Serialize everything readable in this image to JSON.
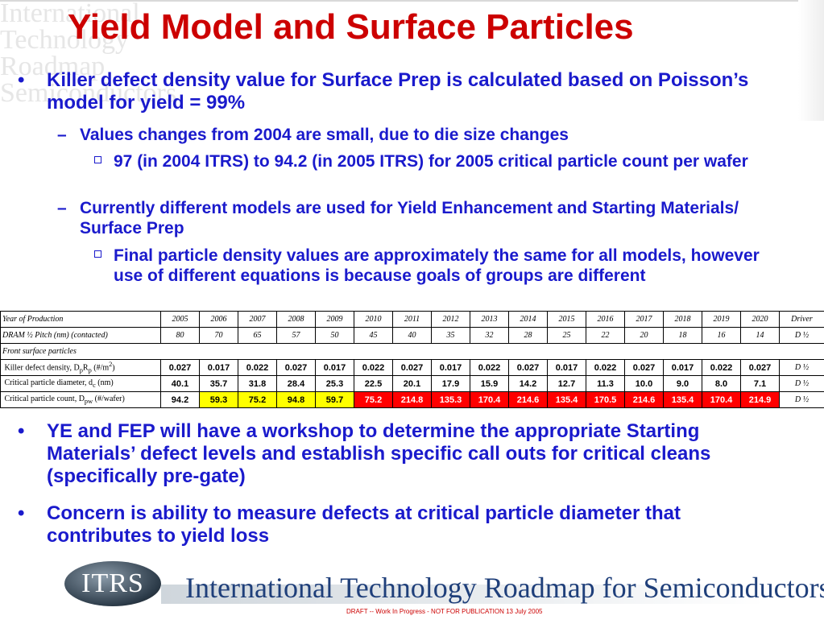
{
  "title": "Yield Model and Surface Particles",
  "watermark_lines": [
    "International",
    "Technology",
    "Roadmap",
    "Semiconductors"
  ],
  "bullets_top": [
    {
      "level": 1,
      "text": "Killer defect density value for Surface Prep is calculated based on Poisson’s model for yield = 99%"
    },
    {
      "level": 2,
      "text": "Values changes from 2004 are small, due to die size changes"
    },
    {
      "level": 3,
      "text": "97 (in 2004 ITRS) to 94.2 (in 2005 ITRS) for 2005 critical particle count per wafer"
    },
    {
      "level": 2,
      "text": "Currently different models are used for Yield Enhancement and Starting Materials/ Surface Prep"
    },
    {
      "level": 3,
      "text": "Final particle density values are approximately the same for all models, however use of different equations is because goals of groups are different"
    }
  ],
  "table": {
    "years_label": "Year of Production",
    "years": [
      "2005",
      "2006",
      "2007",
      "2008",
      "2009",
      "2010",
      "2011",
      "2012",
      "2013",
      "2014",
      "2015",
      "2016",
      "2017",
      "2018",
      "2019",
      "2020"
    ],
    "driver_label": "Driver",
    "pitch_label": "DRAM ½ Pitch (nm) (contacted)",
    "pitch": [
      "80",
      "70",
      "65",
      "57",
      "50",
      "45",
      "40",
      "35",
      "32",
      "28",
      "25",
      "22",
      "20",
      "18",
      "16",
      "14"
    ],
    "pitch_driver": "D ½",
    "section_label": "Front surface particles",
    "killer_label": "Killer defect density, D",
    "killer_label_sub1": "p",
    "killer_label_mid": "R",
    "killer_label_sub2": "p",
    "killer_label_tail": " (#/m",
    "killer_label_sup": "2",
    "killer_label_end": ")",
    "killer": [
      "0.027",
      "0.017",
      "0.022",
      "0.027",
      "0.017",
      "0.022",
      "0.027",
      "0.017",
      "0.022",
      "0.027",
      "0.017",
      "0.022",
      "0.027",
      "0.017",
      "0.022",
      "0.027"
    ],
    "killer_driver": "D ½",
    "diam_label": "Critical particle diameter, d",
    "diam_label_sub": "c",
    "diam_label_tail": " (nm)",
    "diam": [
      "40.1",
      "35.7",
      "31.8",
      "28.4",
      "25.3",
      "22.5",
      "20.1",
      "17.9",
      "15.9",
      "14.2",
      "12.7",
      "11.3",
      "10.0",
      "9.0",
      "8.0",
      "7.1"
    ],
    "diam_driver": "D ½",
    "count_label": "Critical particle count, D",
    "count_label_sub": "pw",
    "count_label_tail": " (#/wafer)",
    "count": [
      "94.2",
      "59.3",
      "75.2",
      "94.8",
      "59.7",
      "75.2",
      "214.8",
      "135.3",
      "170.4",
      "214.6",
      "135.4",
      "170.5",
      "214.6",
      "135.4",
      "170.4",
      "214.9"
    ],
    "count_driver": "D ½",
    "count_cell_colors": [
      "white",
      "yellow",
      "yellow",
      "yellow",
      "yellow",
      "red",
      "red",
      "red",
      "red",
      "red",
      "red",
      "red",
      "red",
      "red",
      "red",
      "red"
    ]
  },
  "bullets_bottom": [
    "YE and FEP will have a workshop to determine the appropriate Starting Materials’ defect levels and establish specific call outs for critical cleans (specifically pre-gate)",
    "Concern is ability to measure defects at critical particle diameter that contributes to yield loss"
  ],
  "footer": {
    "logo_text": "ITRS",
    "roadmap_text": "International Technology Roadmap for Semiconductors",
    "draft_text": "DRAFT -- Work In Progress - NOT FOR PUBLICATION     13 July 2005"
  },
  "colors": {
    "title": "#cc0000",
    "body_text": "#1a1acc",
    "highlight_yellow": "#ffff00",
    "highlight_red": "#ff0000"
  }
}
